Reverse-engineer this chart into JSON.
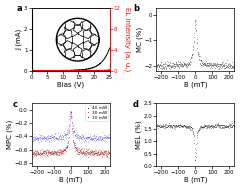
{
  "fig_width": 2.44,
  "fig_height": 1.89,
  "dpi": 100,
  "panel_a": {
    "xlabel": "Bias (V)",
    "ylabel_left": "J (mA)",
    "ylabel_right": "EL intensity (a. u.)",
    "xlim": [
      0,
      25
    ],
    "ylim_left": [
      0,
      3
    ],
    "ylim_right": [
      0,
      12
    ],
    "xticks": [
      0,
      5,
      10,
      15,
      20,
      25
    ],
    "yticks_left": [
      0,
      1,
      2,
      3
    ],
    "yticks_right": [
      0,
      4,
      8,
      12
    ]
  },
  "panel_b": {
    "xlabel": "B (mT)",
    "ylabel": "MC (%)",
    "xlim": [
      -230,
      230
    ],
    "ylim": [
      -2.2,
      0.3
    ],
    "xticks": [
      -200,
      -100,
      0,
      100,
      200
    ],
    "yticks": [
      0,
      -1,
      -2
    ]
  },
  "panel_c": {
    "xlabel": "B (mT)",
    "ylabel": "MPC (%)",
    "xlim": [
      -230,
      230
    ],
    "ylim": [
      -0.85,
      0.1
    ],
    "xticks": [
      -200,
      -100,
      0,
      100,
      200
    ],
    "yticks": [
      0,
      -0.2,
      -0.4,
      -0.6,
      -0.8
    ],
    "colors": [
      "black",
      "red",
      "blue"
    ],
    "labels": [
      "40 mW",
      "30 mW",
      "10 mW"
    ]
  },
  "panel_d": {
    "xlabel": "B (mT)",
    "ylabel": "MEL (%)",
    "xlim": [
      -230,
      230
    ],
    "ylim": [
      0,
      2.5
    ],
    "xticks": [
      -200,
      -100,
      0,
      100,
      200
    ],
    "yticks": [
      0.0,
      0.5,
      1.0,
      1.5,
      2.0,
      2.5
    ]
  },
  "label_fontsize": 5,
  "tick_fontsize": 4,
  "panel_label_fontsize": 6
}
